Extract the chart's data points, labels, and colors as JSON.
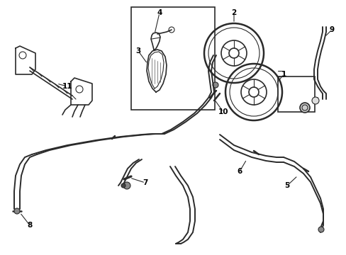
{
  "background_color": "#ffffff",
  "line_color": "#2a2a2a",
  "text_color": "#000000",
  "figsize": [
    4.89,
    3.6
  ],
  "dpi": 100,
  "xlim": [
    0,
    489
  ],
  "ylim": [
    0,
    360
  ]
}
